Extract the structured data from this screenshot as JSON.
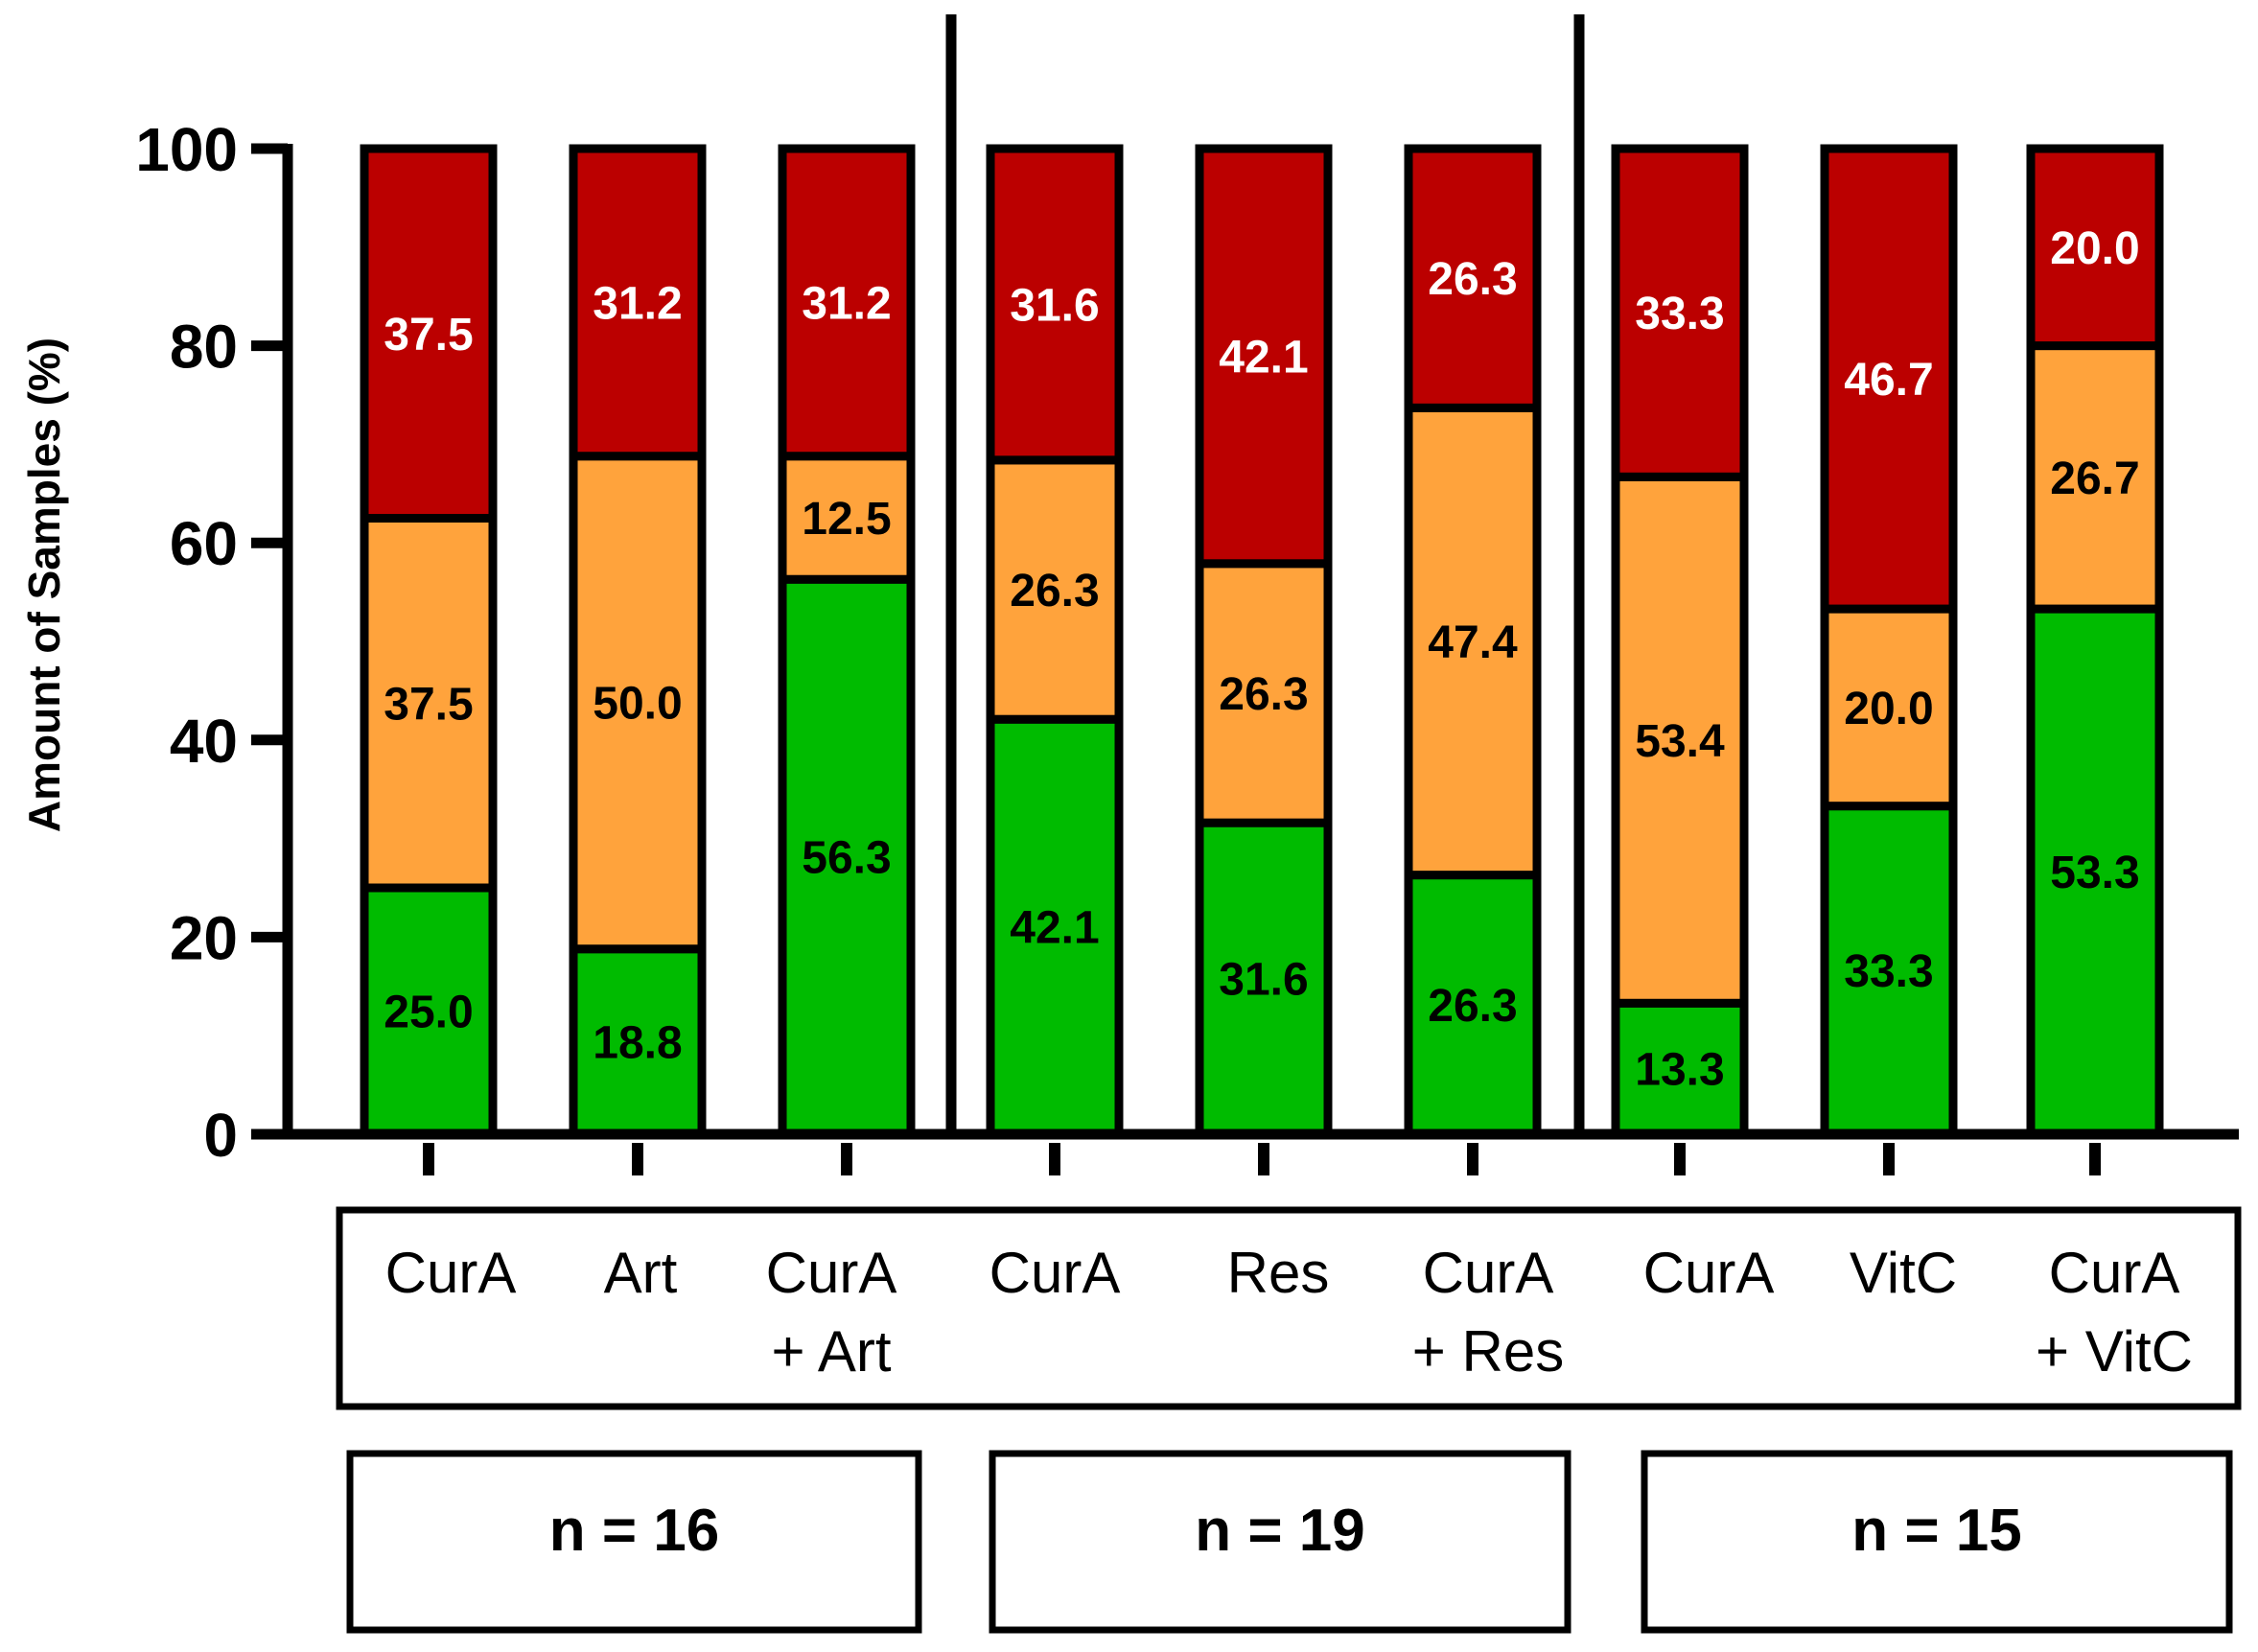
{
  "chart_data": {
    "type": "bar",
    "stacked": true,
    "ylabel": "Amount of Samples (%)",
    "ylim": [
      0,
      100
    ],
    "yticks": [
      "0",
      "20",
      "40",
      "60",
      "80",
      "100"
    ],
    "categories": [
      [
        "CurA"
      ],
      [
        "Art"
      ],
      [
        "CurA",
        "+ Art"
      ],
      [
        "CurA"
      ],
      [
        "Res"
      ],
      [
        "CurA",
        "+ Res"
      ],
      [
        "CurA"
      ],
      [
        "VitC"
      ],
      [
        "CurA",
        "+   VitC"
      ]
    ],
    "series": [
      {
        "name": "green",
        "color": "#00BB00",
        "label_color": "#000000",
        "values": [
          25.0,
          18.8,
          56.3,
          42.1,
          31.6,
          26.3,
          13.3,
          33.3,
          53.3
        ],
        "labels": [
          "25.0",
          "18.8",
          "56.3",
          "42.1",
          "31.6",
          "26.3",
          "13.3",
          "33.3",
          "53.3"
        ]
      },
      {
        "name": "orange",
        "color": "#FFA33C",
        "label_color": "#000000",
        "values": [
          37.5,
          50.0,
          12.5,
          26.3,
          26.3,
          47.4,
          53.4,
          20.0,
          26.7
        ],
        "labels": [
          "37.5",
          "50.0",
          "12.5",
          "26.3",
          "26.3",
          "47.4",
          "53.4",
          "20.0",
          "26.7"
        ]
      },
      {
        "name": "red",
        "color": "#BB0000",
        "label_color": "#FFFFFF",
        "values": [
          37.5,
          31.2,
          31.2,
          31.6,
          42.1,
          26.3,
          33.3,
          46.7,
          20.0
        ],
        "labels": [
          "37.5",
          "31.2",
          "31.2",
          "31.6",
          "42.1",
          "26.3",
          "33.3",
          "46.7",
          "20.0"
        ]
      }
    ],
    "groups": [
      {
        "label": "n = 16",
        "bars": [
          0,
          1,
          2
        ]
      },
      {
        "label": "n = 19",
        "bars": [
          3,
          4,
          5
        ]
      },
      {
        "label": "n = 15",
        "bars": [
          6,
          7,
          8
        ]
      }
    ]
  }
}
